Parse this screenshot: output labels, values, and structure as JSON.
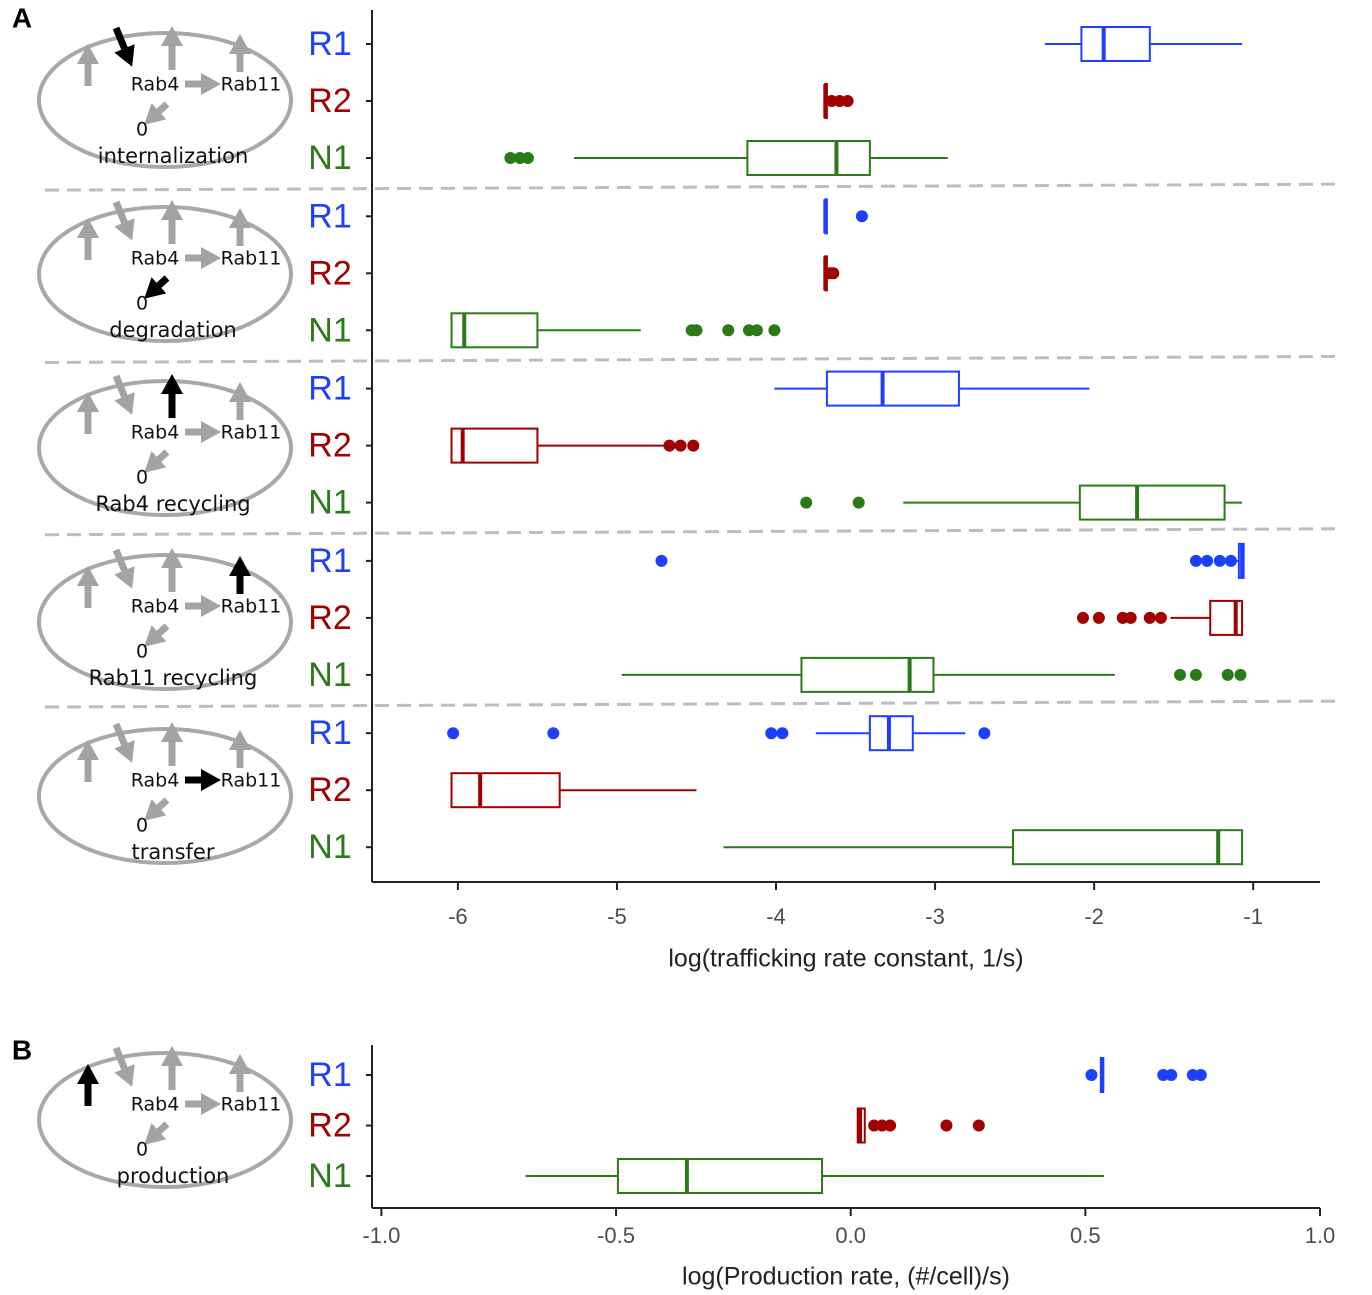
{
  "chart_data": [
    {
      "type": "box",
      "panel_label": "A",
      "xlabel": "log(trafficking rate constant, 1/s)",
      "xlim": [
        -6.54,
        -0.58
      ],
      "xticks": [
        -6,
        -5,
        -4,
        -3,
        -2,
        -1
      ],
      "node_labels": [
        "Rab4",
        "Rab11",
        "0"
      ],
      "groups": [
        {
          "label": "internalization",
          "boxes": [
            {
              "name": "R1",
              "color": "#1f3fff",
              "whislo": -2.31,
              "q1": -2.08,
              "med": -1.94,
              "q3": -1.65,
              "whishi": -1.07,
              "fliers": []
            },
            {
              "name": "R2",
              "color": "#a00000",
              "whislo": -3.69,
              "q1": -3.69,
              "med": -3.69,
              "q3": -3.68,
              "whishi": -3.68,
              "fliers": [
                -3.65,
                -3.6,
                -3.55
              ]
            },
            {
              "name": "N1",
              "color": "#2b7a1a",
              "whislo": -5.27,
              "q1": -4.18,
              "med": -3.62,
              "q3": -3.41,
              "whishi": -2.92,
              "fliers": [
                -5.67,
                -5.61,
                -5.56
              ]
            }
          ]
        },
        {
          "label": "degradation",
          "boxes": [
            {
              "name": "R1",
              "color": "#1f3fff",
              "whislo": -3.69,
              "q1": -3.69,
              "med": -3.69,
              "q3": -3.68,
              "whishi": -3.68,
              "fliers": [
                -3.46
              ]
            },
            {
              "name": "R2",
              "color": "#a00000",
              "whislo": -3.69,
              "q1": -3.69,
              "med": -3.69,
              "q3": -3.68,
              "whishi": -3.68,
              "fliers": [
                -3.66,
                -3.64
              ]
            },
            {
              "name": "N1",
              "color": "#2b7a1a",
              "whislo": -6.04,
              "q1": -6.04,
              "med": -5.96,
              "q3": -5.5,
              "whishi": -4.85,
              "fliers": [
                -4.53,
                -4.5,
                -4.3,
                -4.17,
                -4.12,
                -4.01
              ]
            }
          ]
        },
        {
          "label": "Rab4 recycling",
          "boxes": [
            {
              "name": "R1",
              "color": "#1f3fff",
              "whislo": -4.01,
              "q1": -3.68,
              "med": -3.33,
              "q3": -2.85,
              "whishi": -2.03,
              "fliers": []
            },
            {
              "name": "R2",
              "color": "#a00000",
              "whislo": -6.04,
              "q1": -6.04,
              "med": -5.97,
              "q3": -5.5,
              "whishi": -4.7,
              "fliers": [
                -4.67,
                -4.6,
                -4.52
              ]
            },
            {
              "name": "N1",
              "color": "#2b7a1a",
              "whislo": -3.2,
              "q1": -2.09,
              "med": -1.73,
              "q3": -1.18,
              "whishi": -1.07,
              "fliers": [
                -3.81,
                -3.48
              ]
            }
          ]
        },
        {
          "label": "Rab11 recycling",
          "boxes": [
            {
              "name": "R1",
              "color": "#1f3fff",
              "whislo": -1.13,
              "q1": -1.09,
              "med": -1.07,
              "q3": -1.06,
              "whishi": -1.06,
              "fliers": [
                -4.72,
                -1.36,
                -1.29,
                -1.21,
                -1.14
              ]
            },
            {
              "name": "R2",
              "color": "#a00000",
              "whislo": -1.52,
              "q1": -1.27,
              "med": -1.11,
              "q3": -1.07,
              "whishi": -1.07,
              "fliers": [
                -2.07,
                -1.97,
                -1.82,
                -1.77,
                -1.65,
                -1.58
              ]
            },
            {
              "name": "N1",
              "color": "#2b7a1a",
              "whislo": -4.97,
              "q1": -3.84,
              "med": -3.16,
              "q3": -3.01,
              "whishi": -1.87,
              "fliers": [
                -1.46,
                -1.36,
                -1.16,
                -1.08
              ]
            }
          ]
        },
        {
          "label": "transfer",
          "boxes": [
            {
              "name": "R1",
              "color": "#1f3fff",
              "whislo": -3.75,
              "q1": -3.41,
              "med": -3.29,
              "q3": -3.14,
              "whishi": -2.81,
              "fliers": [
                -6.03,
                -5.4,
                -4.03,
                -3.96,
                -2.69
              ]
            },
            {
              "name": "R2",
              "color": "#a00000",
              "whislo": -6.04,
              "q1": -6.04,
              "med": -5.86,
              "q3": -5.36,
              "whishi": -4.5,
              "fliers": []
            },
            {
              "name": "N1",
              "color": "#2b7a1a",
              "whislo": -4.33,
              "q1": -2.51,
              "med": -1.22,
              "q3": -1.07,
              "whishi": -1.07,
              "fliers": []
            }
          ]
        }
      ]
    },
    {
      "type": "box",
      "panel_label": "B",
      "xlabel": "log(Production rate, (#/cell)/s)",
      "xlim": [
        -1.02,
        1.0
      ],
      "xticks": [
        {
          "value": -1,
          "label": "-1.0"
        },
        -0.5,
        {
          "value": 0,
          "label": "0.0"
        },
        0.5,
        {
          "value": 1,
          "label": "1.0"
        }
      ],
      "node_labels": [
        "Rab4",
        "Rab11",
        "0"
      ],
      "groups": [
        {
          "label": "production",
          "boxes": [
            {
              "name": "R1",
              "color": "#1f3fff",
              "whislo": 0.533,
              "q1": 0.533,
              "med": 0.536,
              "q3": 0.538,
              "whishi": 0.538,
              "fliers": [
                0.513,
                0.666,
                0.683,
                0.729,
                0.746
              ]
            },
            {
              "name": "R2",
              "color": "#a00000",
              "whislo": 0.015,
              "q1": 0.015,
              "med": 0.02,
              "q3": 0.03,
              "whishi": 0.03,
              "fliers": [
                0.05,
                0.067,
                0.084,
                0.204,
                0.273
              ]
            },
            {
              "name": "N1",
              "color": "#2b7a1a",
              "whislo": -0.693,
              "q1": -0.496,
              "med": -0.349,
              "q3": -0.061,
              "whishi": 0.54,
              "fliers": []
            }
          ]
        }
      ]
    }
  ]
}
